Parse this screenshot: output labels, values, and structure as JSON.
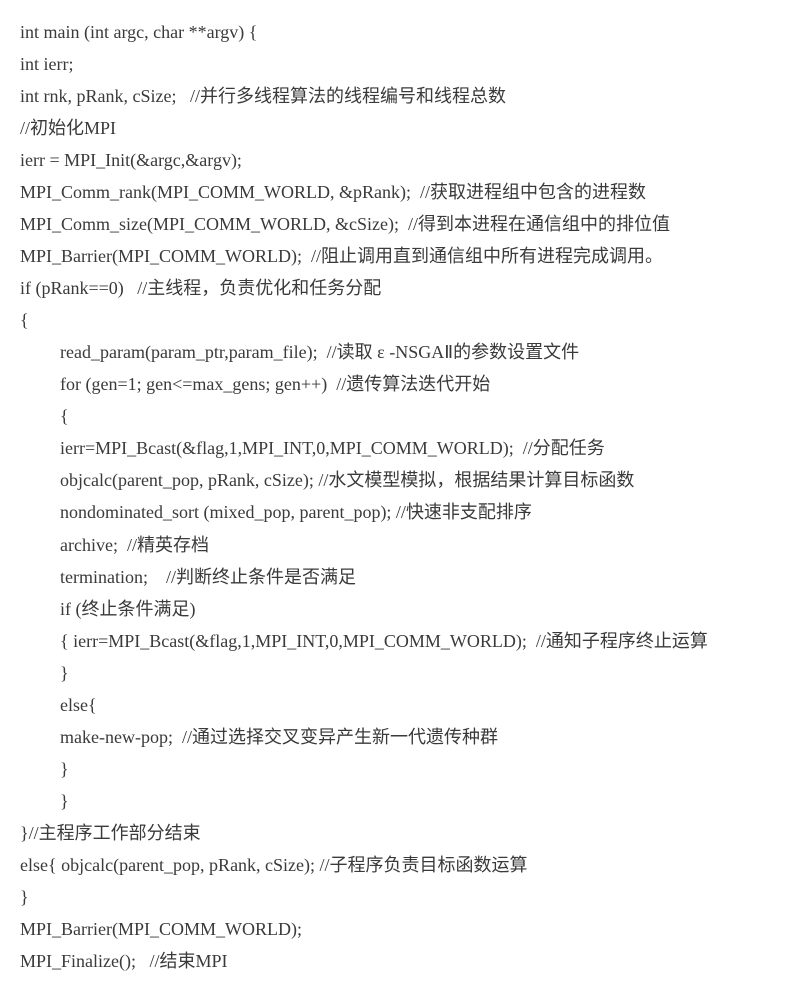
{
  "lines": {
    "l1": "int main (int argc, char **argv) {",
    "l2": "int ierr;",
    "l3": "int rnk, pRank, cSize;   //并行多线程算法的线程编号和线程总数",
    "l4": "//初始化MPI",
    "l5": "ierr = MPI_Init(&argc,&argv);",
    "l6": "MPI_Comm_rank(MPI_COMM_WORLD, &pRank);  //获取进程组中包含的进程数",
    "l7": "MPI_Comm_size(MPI_COMM_WORLD, &cSize);  //得到本进程在通信组中的排位值",
    "l8": "MPI_Barrier(MPI_COMM_WORLD);  //阻止调用直到通信组中所有进程完成调用。",
    "l9": "if (pRank==0)   //主线程，负责优化和任务分配",
    "l10": "{",
    "l11": "read_param(param_ptr,param_file);  //读取 ε -NSGAⅡ的参数设置文件",
    "l12": "for (gen=1; gen<=max_gens; gen++)  //遗传算法迭代开始",
    "l13": "{",
    "l14": "ierr=MPI_Bcast(&flag,1,MPI_INT,0,MPI_COMM_WORLD);  //分配任务",
    "l15": "objcalc(parent_pop, pRank, cSize); //水文模型模拟，根据结果计算目标函数",
    "l16": "nondominated_sort (mixed_pop, parent_pop); //快速非支配排序",
    "l17": "archive;  //精英存档",
    "l18": "termination;    //判断终止条件是否满足",
    "l19": "if (终止条件满足)",
    "l20": "{ ierr=MPI_Bcast(&flag,1,MPI_INT,0,MPI_COMM_WORLD);  //通知子程序终止运算",
    "l21": "}",
    "l22": "else{",
    "l23": "make-new-pop;  //通过选择交叉变异产生新一代遗传种群",
    "l24": "}",
    "l25": "}",
    "l26": "}//主程序工作部分结束",
    "l27": "else{ objcalc(parent_pop, pRank, cSize); //子程序负责目标函数运算",
    "l28": "}",
    "l29": "MPI_Barrier(MPI_COMM_WORLD);",
    "l30": "MPI_Finalize();   //结束MPI"
  }
}
